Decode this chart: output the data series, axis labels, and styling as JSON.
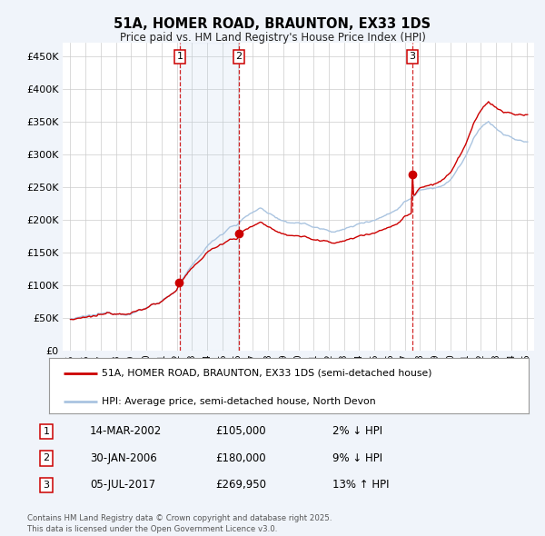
{
  "title": "51A, HOMER ROAD, BRAUNTON, EX33 1DS",
  "subtitle": "Price paid vs. HM Land Registry's House Price Index (HPI)",
  "legend_line1": "51A, HOMER ROAD, BRAUNTON, EX33 1DS (semi-detached house)",
  "legend_line2": "HPI: Average price, semi-detached house, North Devon",
  "sale1_date": "14-MAR-2002",
  "sale1_price": 105000,
  "sale1_hpi": "2% ↓ HPI",
  "sale2_date": "30-JAN-2006",
  "sale2_price": 180000,
  "sale2_hpi": "9% ↓ HPI",
  "sale3_date": "05-JUL-2017",
  "sale3_price": 269950,
  "sale3_hpi": "13% ↑ HPI",
  "sale1_x": 2002.2,
  "sale2_x": 2006.08,
  "sale3_x": 2017.5,
  "hpi_color": "#aac4e0",
  "price_color": "#cc0000",
  "marker_color": "#cc0000",
  "vline_color": "#cc0000",
  "background_color": "#f0f4fa",
  "plot_bg": "#ffffff",
  "footer": "Contains HM Land Registry data © Crown copyright and database right 2025.\nThis data is licensed under the Open Government Licence v3.0.",
  "ylim": [
    0,
    470000
  ],
  "yticks": [
    0,
    50000,
    100000,
    150000,
    200000,
    250000,
    300000,
    350000,
    400000,
    450000
  ],
  "xlim": [
    1994.5,
    2025.5
  ],
  "xticks": [
    1995,
    1996,
    1997,
    1998,
    1999,
    2000,
    2001,
    2002,
    2003,
    2004,
    2005,
    2006,
    2007,
    2008,
    2009,
    2010,
    2011,
    2012,
    2013,
    2014,
    2015,
    2016,
    2017,
    2018,
    2019,
    2020,
    2021,
    2022,
    2023,
    2024,
    2025
  ]
}
